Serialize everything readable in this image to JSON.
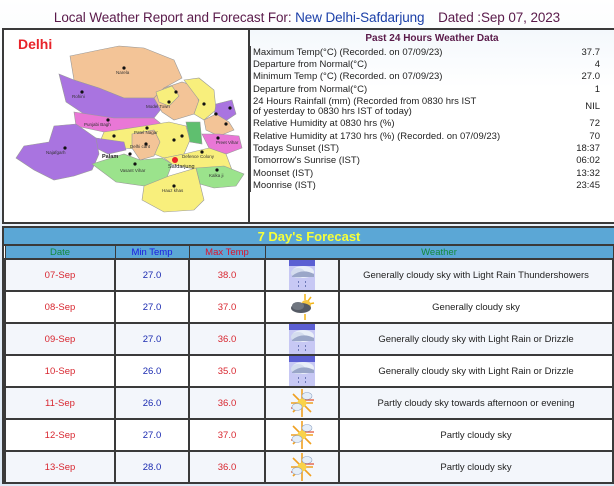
{
  "header": {
    "prefix": "Local Weather Report and Forecast For:",
    "station": "New Delhi-Safdarjung",
    "dated": "Dated :Sep 07, 2023"
  },
  "map": {
    "label": "Delhi",
    "places": [
      "Narela",
      "Rohini",
      "Model Town",
      "Civil lines",
      "Seelampur",
      "Shahdara",
      "Yamuna Puri",
      "Punjabi Bagh",
      "Patel Nagar",
      "Karol Bagh",
      "Rajouri Garden",
      "Najafgarh",
      "Delhi cant",
      "India Gate",
      "Preet Vihar",
      "Vivek Vihar",
      "Chanakyapuri",
      "Palam",
      "Vasant Vihar",
      "Safdarjung",
      "Defence Colony",
      "Kalka ji",
      "Hauz Khas"
    ],
    "marker": "Safdarjung"
  },
  "past24": {
    "title": "Past 24 Hours Weather Data",
    "rows": [
      {
        "label": "Maximum Temp(°C) (Recorded. on 07/09/23)",
        "value": "37.7"
      },
      {
        "label": "Departure from Normal(°C)",
        "value": "4"
      },
      {
        "label": "Minimum Temp (°C) (Recorded. on 07/09/23)",
        "value": "27.0"
      },
      {
        "label": "Departure from Normal(°C)",
        "value": "1"
      },
      {
        "label": "24 Hours Rainfall (mm) (Recorded from 0830 hrs IST of yesterday to 0830 hrs IST of today)",
        "value": "NIL"
      },
      {
        "label": "Relative Humidity at 0830 hrs (%)",
        "value": "72"
      },
      {
        "label": "Relative Humidity at 1730 hrs (%) (Recorded. on 07/09/23)",
        "value": "70"
      },
      {
        "label": "Todays Sunset (IST)",
        "value": "18:37"
      },
      {
        "label": "Tomorrow's Sunrise (IST)",
        "value": "06:02"
      },
      {
        "label": "Moonset (IST)",
        "value": "13:32"
      },
      {
        "label": "Moonrise (IST)",
        "value": "23:45"
      }
    ]
  },
  "forecast": {
    "title": "7 Day's Forecast",
    "columns": {
      "date": "Date",
      "min": "Min Temp",
      "max": "Max Temp",
      "weather": "Weather"
    },
    "rows": [
      {
        "date": "07-Sep",
        "min": "27.0",
        "max": "38.0",
        "icon": "rain-cloud-icon",
        "weather": "Generally cloudy sky with Light Rain Thundershowers"
      },
      {
        "date": "08-Sep",
        "min": "27.0",
        "max": "37.0",
        "icon": "cloudy-sun-icon",
        "weather": "Generally cloudy sky"
      },
      {
        "date": "09-Sep",
        "min": "27.0",
        "max": "36.0",
        "icon": "rain-cloud-icon",
        "weather": "Generally cloudy sky with Light Rain or Drizzle"
      },
      {
        "date": "10-Sep",
        "min": "26.0",
        "max": "35.0",
        "icon": "rain-cloud-icon",
        "weather": "Generally cloudy sky with Light Rain or Drizzle"
      },
      {
        "date": "11-Sep",
        "min": "26.0",
        "max": "36.0",
        "icon": "partly-cloudy-icon",
        "weather": "Partly cloudy sky towards afternoon or evening"
      },
      {
        "date": "12-Sep",
        "min": "27.0",
        "max": "37.0",
        "icon": "partly-cloudy-icon",
        "weather": "Partly cloudy sky"
      },
      {
        "date": "13-Sep",
        "min": "28.0",
        "max": "36.0",
        "icon": "partly-cloudy-icon",
        "weather": "Partly cloudy sky"
      }
    ]
  },
  "colors": {
    "title_maroon": "#5a1a4a",
    "station_blue": "#1b3fa8",
    "header_bar": "#5ba7d6",
    "forecast_title": "#f6ff3a",
    "date_red": "#d8262f",
    "min_blue": "#1a2ab0",
    "green_head": "#138a3a",
    "map_marker": "#e8232a"
  }
}
